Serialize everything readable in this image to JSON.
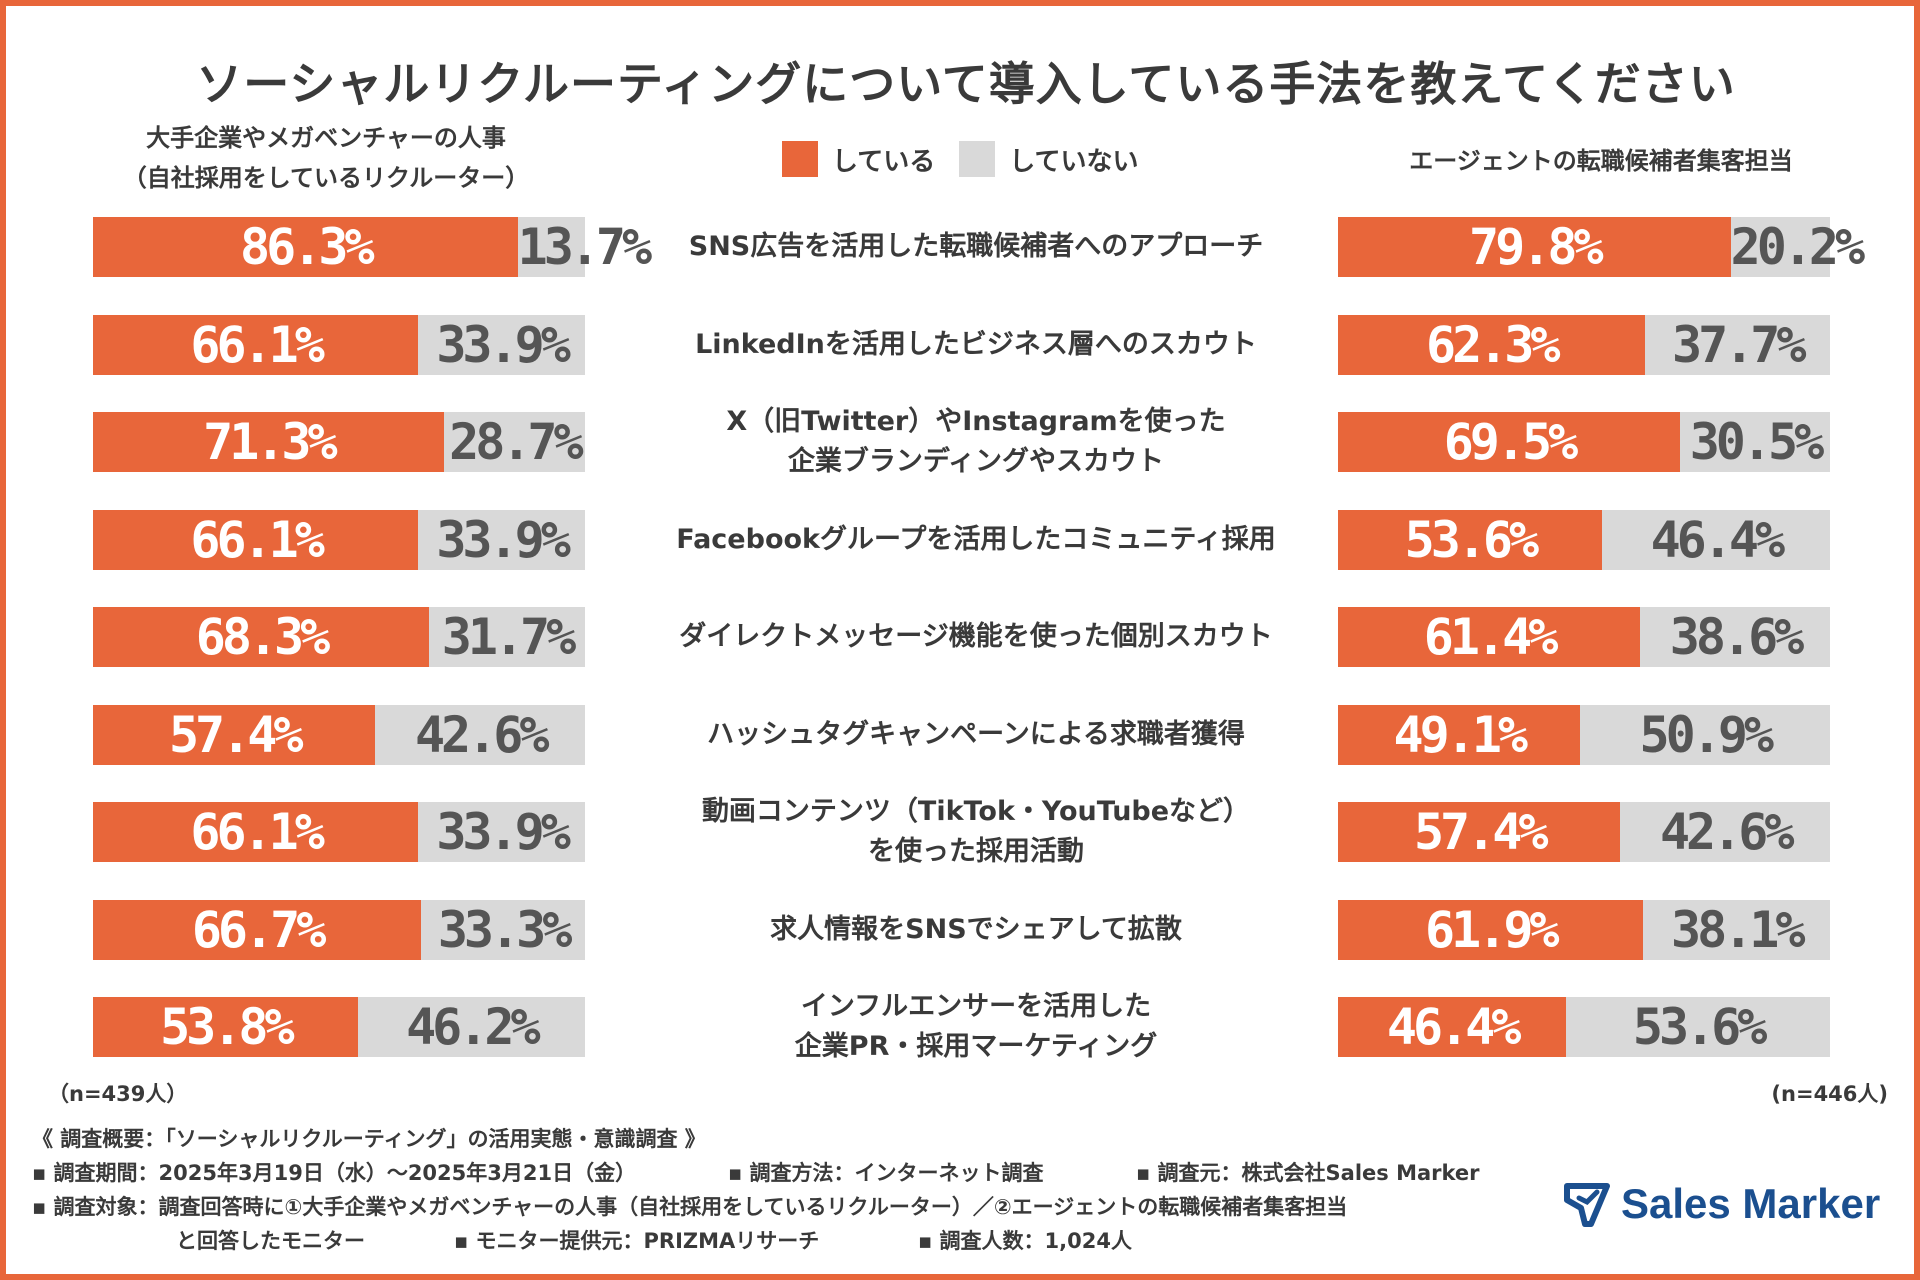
{
  "title": "ソーシャルリクルーティングについて導入している手法を教えてください",
  "legend": {
    "doing": "している",
    "not_doing": "していない"
  },
  "colors": {
    "doing": "#e8663a",
    "not_doing": "#d9d9d9",
    "frame": "#e8663a",
    "logo": "#1b4f8f"
  },
  "groups": {
    "left_line1": "大手企業やメガベンチャーの人事",
    "left_line2": "（自社採用をしているリクルーター）",
    "right": "エージェントの転職候補者集客担当",
    "left_n": "（n=439人）",
    "right_n": "(n=446人)"
  },
  "chart_data": {
    "type": "bar",
    "stacked": true,
    "orientation": "horizontal",
    "title": "ソーシャルリクルーティングについて導入している手法を教えてください",
    "categories": [
      {
        "line1": "SNS広告を活用した転職候補者へのアプローチ",
        "line2": ""
      },
      {
        "line1": "LinkedInを活用したビジネス層へのスカウト",
        "line2": ""
      },
      {
        "line1": "X（旧Twitter）やInstagramを使った",
        "line2": "企業ブランディングやスカウト"
      },
      {
        "line1": "Facebookグループを活用したコミュニティ採用",
        "line2": ""
      },
      {
        "line1": "ダイレクトメッセージ機能を使った個別スカウト",
        "line2": ""
      },
      {
        "line1": "ハッシュタグキャンペーンによる求職者獲得",
        "line2": ""
      },
      {
        "line1": "動画コンテンツ（TikTok・YouTubeなど）",
        "line2": "を使った採用活動"
      },
      {
        "line1": "求人情報をSNSでシェアして拡散",
        "line2": ""
      },
      {
        "line1": "インフルエンサーを活用した",
        "line2": "企業PR・採用マーケティング"
      }
    ],
    "panels": [
      {
        "name": "大手企業やメガベンチャーの人事（自社採用をしているリクルーター）",
        "n": 439,
        "series": [
          {
            "name": "している",
            "values": [
              86.3,
              66.1,
              71.3,
              66.1,
              68.3,
              57.4,
              66.1,
              66.7,
              53.8
            ],
            "labels": [
              "86.3%",
              "66.1%",
              "71.3%",
              "66.1%",
              "68.3%",
              "57.4%",
              "66.1%",
              "66.7%",
              "53.8%"
            ]
          },
          {
            "name": "していない",
            "values": [
              13.7,
              33.9,
              28.7,
              33.9,
              31.7,
              42.6,
              33.9,
              33.3,
              46.2
            ],
            "labels": [
              "13.7%",
              "33.9%",
              "28.7%",
              "33.9%",
              "31.7%",
              "42.6%",
              "33.9%",
              "33.3%",
              "46.2%"
            ]
          }
        ]
      },
      {
        "name": "エージェントの転職候補者集客担当",
        "n": 446,
        "series": [
          {
            "name": "している",
            "values": [
              79.8,
              62.3,
              69.5,
              53.6,
              61.4,
              49.1,
              57.4,
              61.9,
              46.4
            ],
            "labels": [
              "79.8%",
              "62.3%",
              "69.5%",
              "53.6%",
              "61.4%",
              "49.1%",
              "57.4%",
              "61.9%",
              "46.4%"
            ]
          },
          {
            "name": "していない",
            "values": [
              20.2,
              37.7,
              30.5,
              46.4,
              38.6,
              50.9,
              42.6,
              38.1,
              53.6
            ],
            "labels": [
              "20.2%",
              "37.7%",
              "30.5%",
              "46.4%",
              "38.6%",
              "50.9%",
              "42.6%",
              "38.1%",
              "53.6%"
            ]
          }
        ]
      }
    ],
    "xlim": [
      0,
      100
    ]
  },
  "notes": {
    "header": "《 調査概要：「ソーシャルリクルーティング」の活用実態・意識調査 》",
    "period": "▪ 調査期間：2025年3月19日（水）～2025年3月21日（金）",
    "method": "▪ 調査方法：インターネット調査",
    "source": "▪ 調査元：株式会社Sales Marker",
    "target": "▪ 調査対象：調査回答時に①大手企業やメガベンチャーの人事（自社採用をしているリクルーター）／②エージェントの転職候補者集客担当",
    "target_cont": "と回答したモニター",
    "provider": "▪ モニター提供元：PRIZMAリサーチ",
    "count": "▪ 調査人数：1,024人"
  },
  "logo": {
    "text": "Sales Marker",
    "icon": "sales-marker-logo-icon"
  }
}
